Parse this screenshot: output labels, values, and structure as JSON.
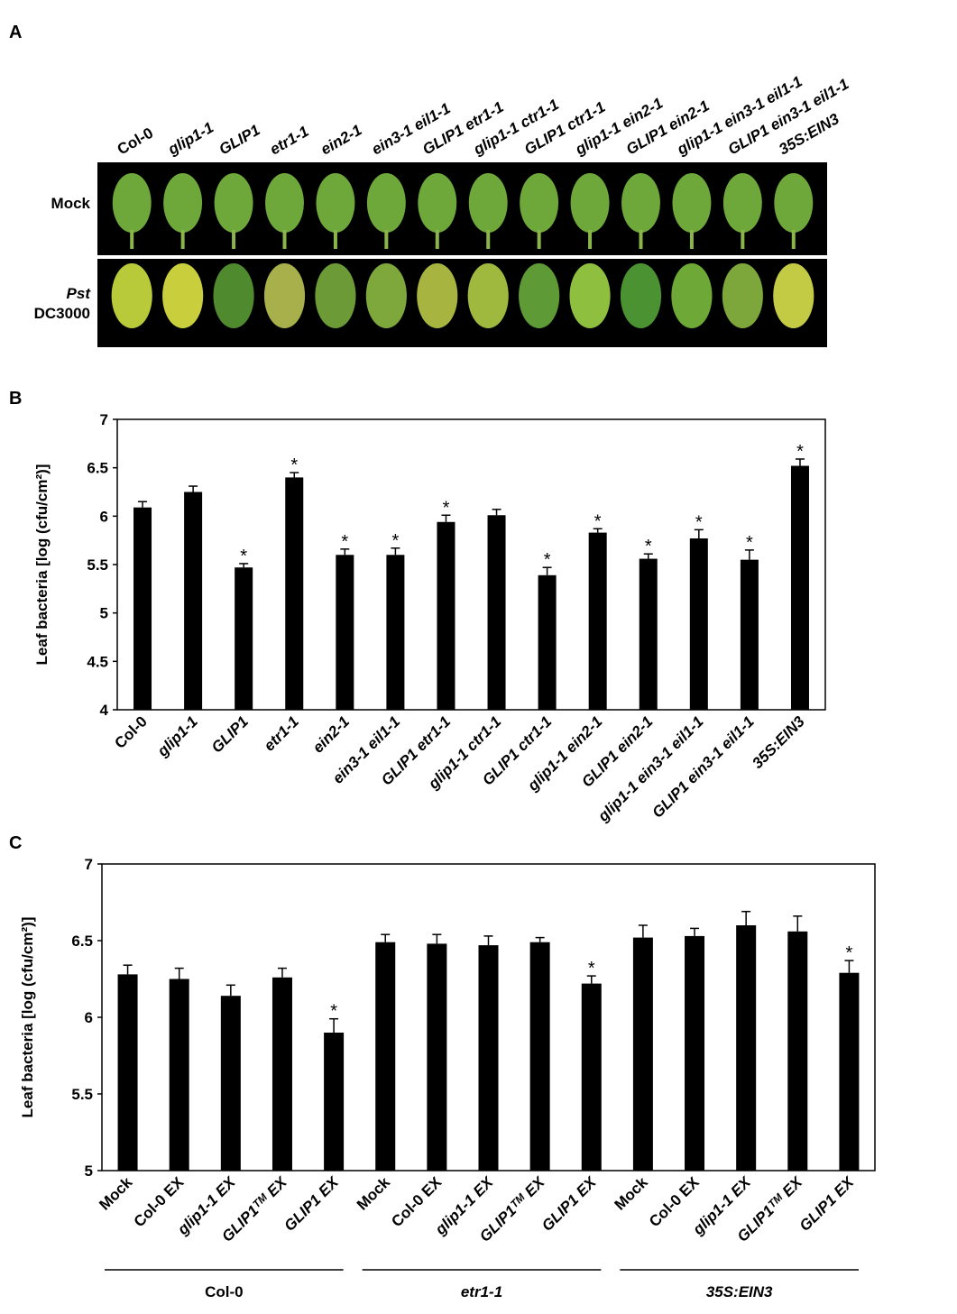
{
  "panel_labels": [
    "A",
    "B",
    "C"
  ],
  "photo": {
    "columns": [
      "Col-0",
      "glip1-1",
      "GLIP1",
      "etr1-1",
      "ein2-1",
      "ein3-1 eil1-1",
      "GLIP1 etr1-1",
      "glip1-1 ctr1-1",
      "GLIP1 ctr1-1",
      "glip1-1 ein2-1",
      "GLIP1 ein2-1",
      "glip1-1 ein3-1 eil1-1",
      "GLIP1 ein3-1 eil1-1",
      "35S:EIN3"
    ],
    "rows": [
      [
        "Mock"
      ],
      [
        "Pst",
        "DC3000"
      ]
    ]
  },
  "chart_data": [
    {
      "type": "bar",
      "y_label": "Leaf bacteria [log (cfu/cm²)]",
      "color": "#000000",
      "categories": [
        "Col-0",
        "glip1-1",
        "GLIP1",
        "etr1-1",
        "ein2-1",
        "ein3-1 eil1-1",
        "GLIP1 etr1-1",
        "glip1-1 ctr1-1",
        "GLIP1 ctr1-1",
        "glip1-1 ein2-1",
        "GLIP1 ein2-1",
        "glip1-1 ein3-1 eil1-1",
        "GLIP1 ein3-1 eil1-1",
        "35S:EIN3"
      ],
      "italic": [
        false,
        true,
        true,
        true,
        true,
        true,
        true,
        true,
        true,
        true,
        true,
        true,
        true,
        true
      ],
      "values": [
        6.09,
        6.25,
        5.47,
        6.4,
        5.6,
        5.6,
        5.94,
        6.01,
        5.39,
        5.83,
        5.56,
        5.77,
        5.55,
        6.52
      ],
      "errors": [
        0.06,
        0.06,
        0.04,
        0.05,
        0.06,
        0.07,
        0.07,
        0.06,
        0.08,
        0.04,
        0.05,
        0.09,
        0.1,
        0.07
      ],
      "marks": [
        null,
        null,
        "*",
        "*",
        "*",
        "*",
        "*",
        null,
        "*",
        "*",
        "*",
        "*",
        "*",
        "*"
      ],
      "ylim": [
        4,
        7
      ],
      "yticks": [
        4,
        4.5,
        5,
        5.5,
        6,
        6.5,
        7
      ]
    },
    {
      "type": "bar",
      "y_label": "Leaf bacteria [log (cfu/cm²)]",
      "color": "#000000",
      "categories": [
        "Mock",
        "Col-0 EX",
        "glip1-1 EX",
        "GLIP1ᵀᴹ EX",
        "GLIP1 EX",
        "Mock",
        "Col-0 EX",
        "glip1-1 EX",
        "GLIP1ᵀᴹ EX",
        "GLIP1 EX",
        "Mock",
        "Col-0 EX",
        "glip1-1 EX",
        "GLIP1ᵀᴹ EX",
        "GLIP1 EX"
      ],
      "italic": [
        false,
        false,
        true,
        true,
        true,
        false,
        false,
        true,
        true,
        true,
        false,
        false,
        true,
        true,
        true
      ],
      "values": [
        6.28,
        6.25,
        6.14,
        6.26,
        5.9,
        6.49,
        6.48,
        6.47,
        6.49,
        6.22,
        6.52,
        6.53,
        6.6,
        6.56,
        6.29
      ],
      "errors": [
        0.06,
        0.07,
        0.07,
        0.06,
        0.09,
        0.05,
        0.06,
        0.06,
        0.03,
        0.05,
        0.08,
        0.05,
        0.09,
        0.1,
        0.08
      ],
      "marks": [
        null,
        null,
        null,
        null,
        "*",
        null,
        null,
        null,
        null,
        "*",
        null,
        null,
        null,
        null,
        "*"
      ],
      "groups": [
        {
          "name": "Col-0",
          "size": 5,
          "italic": false
        },
        {
          "name": "etr1-1",
          "size": 5,
          "italic": true
        },
        {
          "name": "35S:EIN3",
          "size": 5,
          "italic": true
        }
      ],
      "ylim": [
        5,
        7
      ],
      "yticks": [
        5,
        5.5,
        6,
        6.5,
        7
      ]
    }
  ]
}
